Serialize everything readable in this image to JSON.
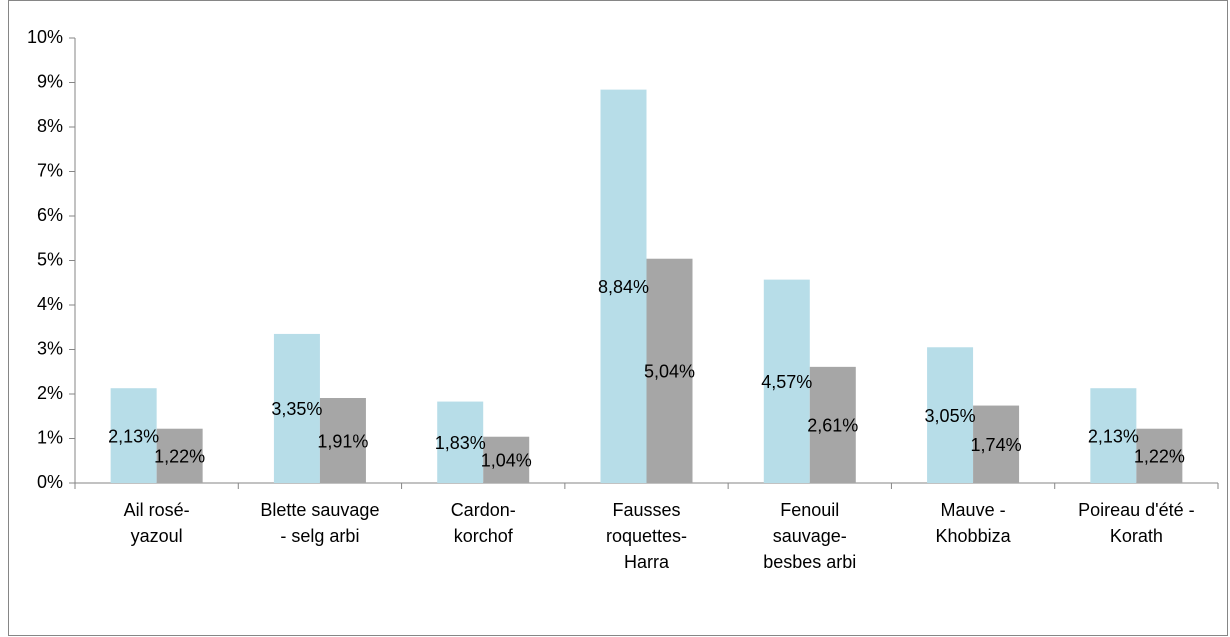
{
  "chart_data": {
    "type": "bar",
    "categories": [
      "Ail rosé-\nyazoul",
      "Blette sauvage\n- selg arbi",
      "Cardon-\nkorchof",
      "Fausses\nroquettes-\nHarra",
      "Fenouil\nsauvage-\nbesbes arbi",
      "Mauve -\nKhobbiza",
      "Poireau d'été -\nKorath"
    ],
    "series": [
      {
        "color": "#b7dde8",
        "values": [
          2.13,
          3.35,
          1.83,
          8.84,
          4.57,
          3.05,
          2.13
        ],
        "value_labels": [
          "2,13%",
          "3,35%",
          "1,83%",
          "8,84%",
          "4,57%",
          "3,05%",
          "2,13%"
        ]
      },
      {
        "color": "#a6a6a6",
        "values": [
          1.22,
          1.91,
          1.04,
          5.04,
          2.61,
          1.74,
          1.22
        ],
        "value_labels": [
          "1,22%",
          "1,91%",
          "1,04%",
          "5,04%",
          "2,61%",
          "1,74%",
          "1,22%"
        ]
      }
    ],
    "ylim": [
      0,
      10
    ],
    "yticks": [
      {
        "value": 0,
        "label": "0%"
      },
      {
        "value": 1,
        "label": "1%"
      },
      {
        "value": 2,
        "label": "2%"
      },
      {
        "value": 3,
        "label": "3%"
      },
      {
        "value": 4,
        "label": "4%"
      },
      {
        "value": 5,
        "label": "5%"
      },
      {
        "value": 6,
        "label": "6%"
      },
      {
        "value": 7,
        "label": "7%"
      },
      {
        "value": 8,
        "label": "8%"
      },
      {
        "value": 9,
        "label": "9%"
      },
      {
        "value": 10,
        "label": "10%"
      }
    ],
    "grid": false
  }
}
